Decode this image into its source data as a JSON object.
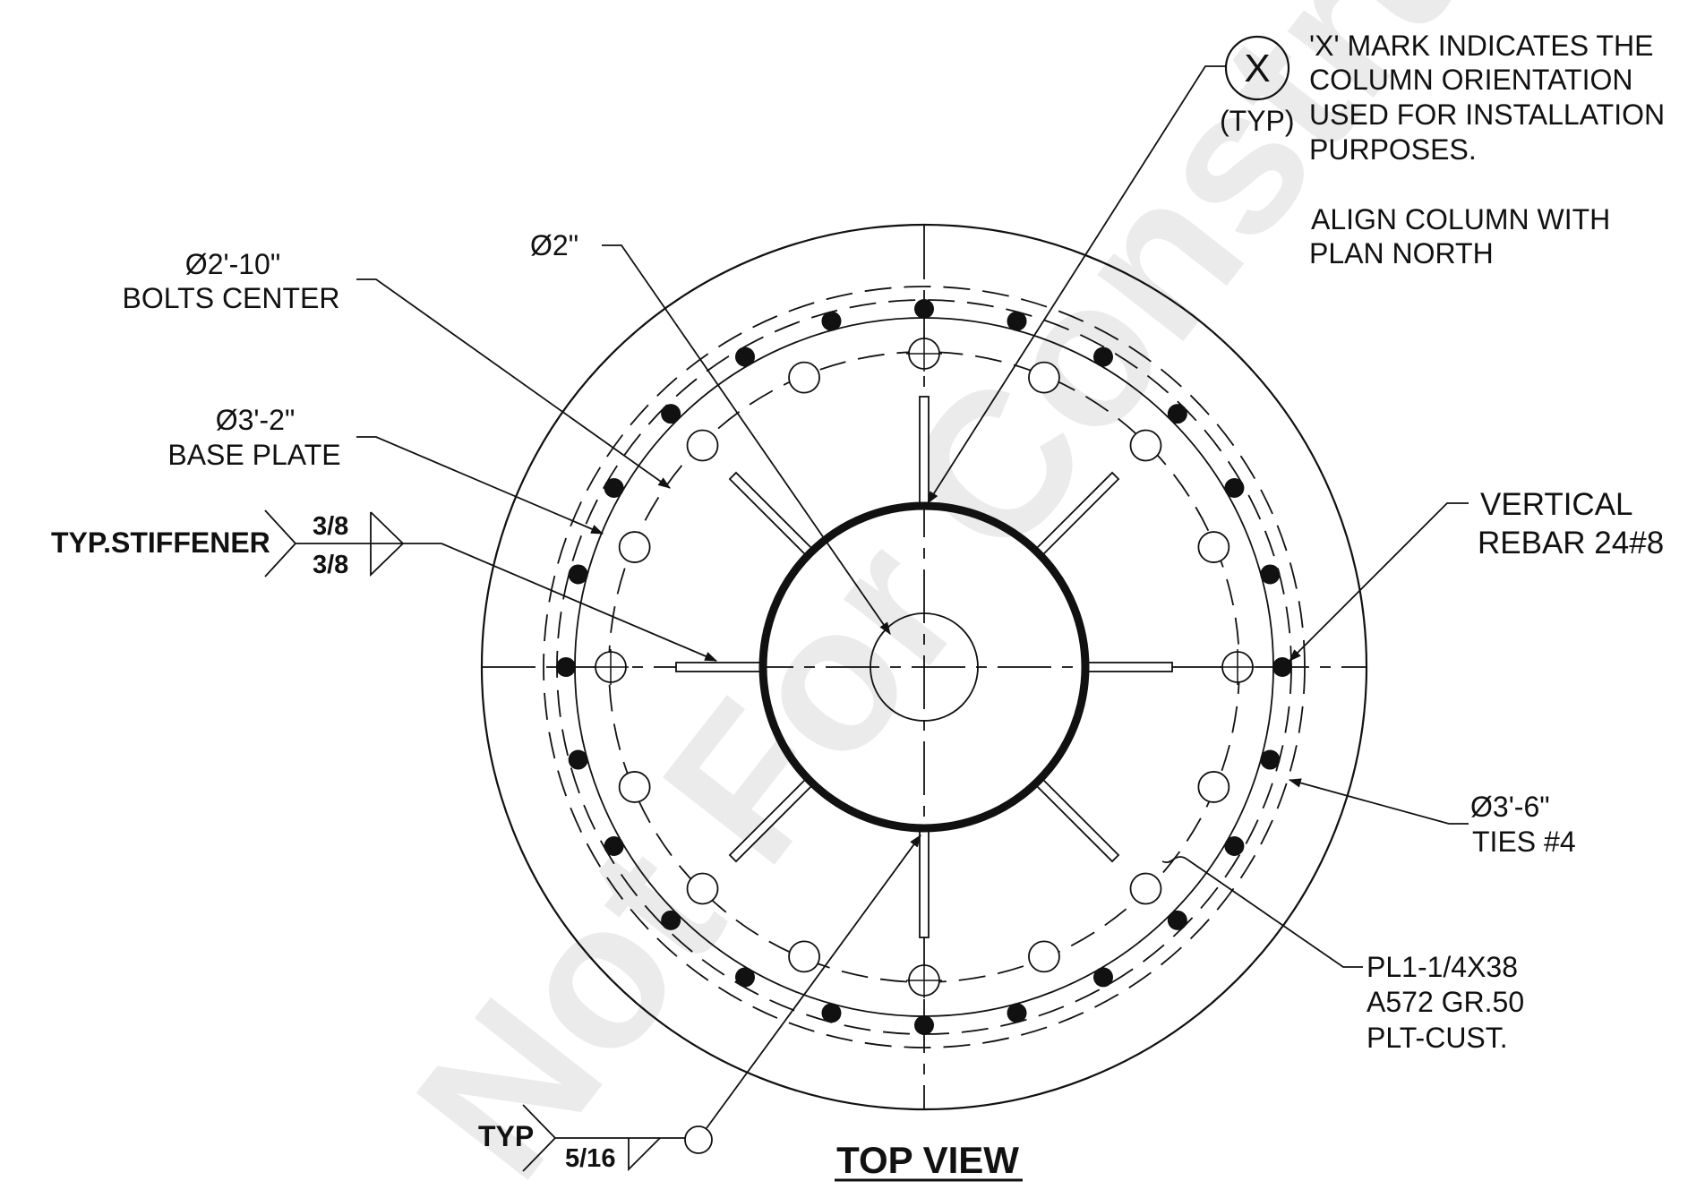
{
  "watermark": "Not For Construction",
  "title": "TOP VIEW",
  "orientation_note": {
    "symbol": "X",
    "typ": "(TYP)",
    "lines": [
      "'X' MARK INDICATES THE",
      "COLUMN ORIENTATION",
      "USED FOR INSTALLATION",
      "PURPOSES."
    ],
    "align_lines": [
      "ALIGN COLUMN WITH",
      "PLAN NORTH"
    ]
  },
  "callouts": {
    "hole_dia": "Ø2\"",
    "bolts_center": [
      "Ø2'-10\"",
      "BOLTS CENTER"
    ],
    "base_plate": [
      "Ø3'-2\"",
      "BASE PLATE"
    ],
    "vertical_rebar": [
      "VERTICAL",
      "REBAR 24#8"
    ],
    "ties": [
      "Ø3'-6\"",
      "TIES #4"
    ],
    "plate": [
      "PL1-1/4X38",
      "A572 GR.50",
      "PLT-CUST."
    ]
  },
  "weld_stiffener": {
    "label": "TYP.STIFFENER",
    "top": "3/8",
    "bottom": "3/8"
  },
  "weld_typ": {
    "label": "TYP",
    "size": "5/16"
  },
  "counts": {
    "rebars": 24,
    "bolt_holes": 16,
    "stiffeners": 8
  }
}
